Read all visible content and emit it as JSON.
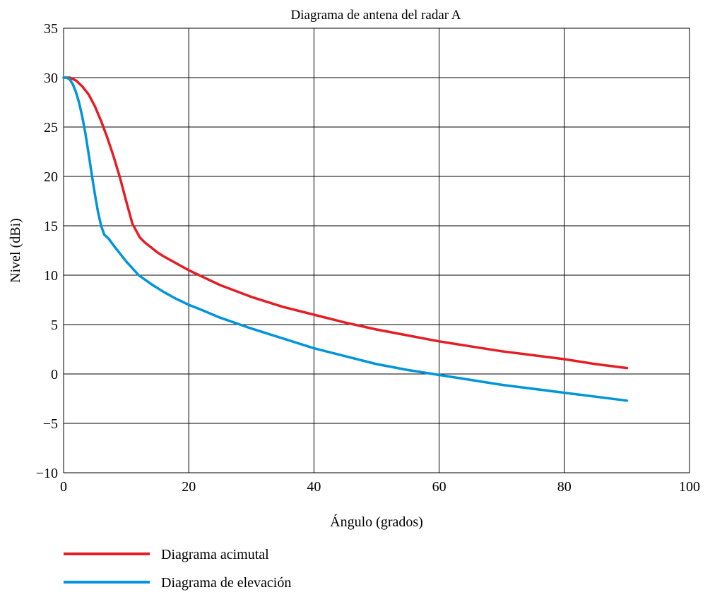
{
  "chart_data": {
    "type": "line",
    "title": "Diagrama de antena del radar A",
    "xlabel": "Ángulo (grados)",
    "ylabel": "Nivel (dBi)",
    "xlim": [
      0,
      100
    ],
    "ylim": [
      -10,
      35
    ],
    "xticks": [
      0,
      20,
      40,
      60,
      80,
      100
    ],
    "xtick_labels": [
      "0",
      "20",
      "40",
      "60",
      "80",
      "100"
    ],
    "yticks": [
      35,
      30,
      25,
      20,
      15,
      10,
      5,
      0,
      -5,
      -10
    ],
    "ytick_labels": [
      "35",
      "30",
      "25",
      "20",
      "15",
      "10",
      "5",
      "0",
      "−5",
      "−10"
    ],
    "grid": true,
    "legend_position": "bottom-left",
    "series": [
      {
        "name": "Diagrama acimutal",
        "color": "#e31e24",
        "points": [
          [
            0,
            30
          ],
          [
            1,
            30
          ],
          [
            2,
            29.7
          ],
          [
            3,
            29.1
          ],
          [
            4,
            28.3
          ],
          [
            5,
            27.1
          ],
          [
            6,
            25.6
          ],
          [
            7,
            23.9
          ],
          [
            8,
            22.0
          ],
          [
            9,
            19.9
          ],
          [
            10,
            17.5
          ],
          [
            11,
            15.2
          ],
          [
            12.2,
            13.8
          ],
          [
            13,
            13.3
          ],
          [
            14,
            12.8
          ],
          [
            15,
            12.3
          ],
          [
            16,
            11.9
          ],
          [
            18,
            11.2
          ],
          [
            20,
            10.5
          ],
          [
            22,
            9.9
          ],
          [
            25,
            9.0
          ],
          [
            30,
            7.8
          ],
          [
            35,
            6.8
          ],
          [
            40,
            6.0
          ],
          [
            45,
            5.2
          ],
          [
            50,
            4.5
          ],
          [
            55,
            3.9
          ],
          [
            60,
            3.3
          ],
          [
            65,
            2.8
          ],
          [
            70,
            2.3
          ],
          [
            75,
            1.9
          ],
          [
            80,
            1.5
          ],
          [
            85,
            1.0
          ],
          [
            90,
            0.6
          ]
        ]
      },
      {
        "name": "Diagrama de elevación",
        "color": "#0095da",
        "points": [
          [
            0,
            30
          ],
          [
            0.5,
            30
          ],
          [
            1,
            29.8
          ],
          [
            1.5,
            29.3
          ],
          [
            2,
            28.5
          ],
          [
            2.5,
            27.4
          ],
          [
            3,
            26
          ],
          [
            3.5,
            24.3
          ],
          [
            4,
            22.3
          ],
          [
            4.5,
            20.2
          ],
          [
            5,
            18.2
          ],
          [
            5.5,
            16.4
          ],
          [
            6,
            15.0
          ],
          [
            6.5,
            14.1
          ],
          [
            7.2,
            13.7
          ],
          [
            8,
            13.0
          ],
          [
            9,
            12.2
          ],
          [
            10,
            11.4
          ],
          [
            12,
            10.0
          ],
          [
            14,
            9.1
          ],
          [
            16,
            8.3
          ],
          [
            18,
            7.6
          ],
          [
            20,
            7.0
          ],
          [
            22,
            6.5
          ],
          [
            25,
            5.7
          ],
          [
            30,
            4.6
          ],
          [
            35,
            3.6
          ],
          [
            40,
            2.6
          ],
          [
            45,
            1.8
          ],
          [
            50,
            1.0
          ],
          [
            55,
            0.4
          ],
          [
            60,
            -0.1
          ],
          [
            65,
            -0.6
          ],
          [
            70,
            -1.1
          ],
          [
            75,
            -1.5
          ],
          [
            80,
            -1.9
          ],
          [
            85,
            -2.3
          ],
          [
            90,
            -2.7
          ]
        ]
      }
    ]
  }
}
